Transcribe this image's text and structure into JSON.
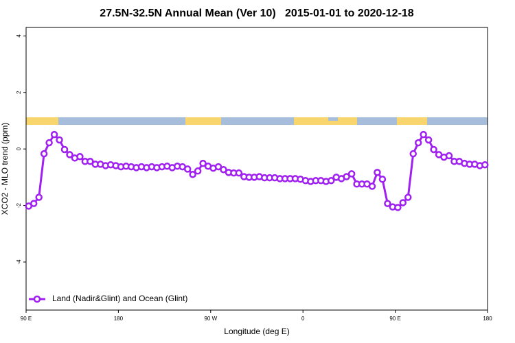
{
  "chart_data": {
    "type": "line",
    "title": "27.5N-32.5N Annual Mean (Ver 10)   2015-01-01 to 2020-12-18",
    "x_label": "Longitude (deg E)",
    "y_label": "XCO2 - MLO trend (ppm)",
    "xlim": [
      90,
      540
    ],
    "xticks": [
      {
        "value": 90,
        "label": "90 E"
      },
      180,
      {
        "value": 270,
        "label": "90 W"
      },
      {
        "value": 360,
        "label": "0"
      },
      {
        "value": 450,
        "label": "90 E"
      },
      {
        "value": 540,
        "label": "180"
      }
    ],
    "ylim": [
      -5.7,
      4.3
    ],
    "yticks": [
      -4,
      -2,
      0,
      2,
      4
    ],
    "legend": "bottom-left",
    "x": [
      92.5,
      97.5,
      102.5,
      107.5,
      112.5,
      117.5,
      122.5,
      127.5,
      132.5,
      137.5,
      142.5,
      147.5,
      152.5,
      157.5,
      162.5,
      167.5,
      172.5,
      177.5,
      182.5,
      187.5,
      192.5,
      197.5,
      202.5,
      207.5,
      212.5,
      217.5,
      222.5,
      227.5,
      232.5,
      237.5,
      242.5,
      247.5,
      252.5,
      257.5,
      262.5,
      267.5,
      272.5,
      277.5,
      282.5,
      287.5,
      292.5,
      297.5,
      302.5,
      307.5,
      312.5,
      317.5,
      322.5,
      327.5,
      332.5,
      337.5,
      342.5,
      347.5,
      352.5,
      357.5,
      362.5,
      367.5,
      372.5,
      377.5,
      382.5,
      387.5,
      392.5,
      397.5,
      402.5,
      407.5,
      412.5,
      417.5,
      422.5,
      427.5,
      432.5,
      437.5,
      442.5,
      447.5,
      452.5,
      457.5,
      462.5,
      467.5,
      472.5,
      477.5,
      482.5,
      487.5,
      492.5,
      497.5,
      502.5,
      507.5,
      512.5,
      517.5,
      522.5,
      527.5,
      532.5,
      537.5
    ],
    "series": [
      {
        "name": "Land (Nadir&Glint) and Ocean (Glint)",
        "color": "#a020f0",
        "values": [
          -2.02,
          -1.93,
          -1.71,
          -0.17,
          0.22,
          0.51,
          0.32,
          -0.02,
          -0.2,
          -0.32,
          -0.27,
          -0.44,
          -0.44,
          -0.54,
          -0.54,
          -0.59,
          -0.56,
          -0.59,
          -0.63,
          -0.61,
          -0.63,
          -0.66,
          -0.63,
          -0.66,
          -0.63,
          -0.66,
          -0.63,
          -0.61,
          -0.66,
          -0.61,
          -0.63,
          -0.71,
          -0.9,
          -0.78,
          -0.51,
          -0.61,
          -0.68,
          -0.63,
          -0.73,
          -0.83,
          -0.85,
          -0.85,
          -0.98,
          -1.0,
          -1.0,
          -0.98,
          -1.02,
          -1.02,
          -1.02,
          -1.05,
          -1.05,
          -1.05,
          -1.05,
          -1.07,
          -1.12,
          -1.15,
          -1.12,
          -1.12,
          -1.15,
          -1.12,
          -1.0,
          -1.05,
          -0.98,
          -0.88,
          -1.24,
          -1.24,
          -1.24,
          -1.32,
          -0.83,
          -1.07,
          -1.93,
          -2.05,
          -2.07,
          -1.9,
          -1.71,
          -0.17,
          0.22,
          0.51,
          0.32,
          -0.02,
          -0.2,
          -0.29,
          -0.24,
          -0.44,
          -0.44,
          -0.51,
          -0.54,
          -0.54,
          -0.59,
          -0.56
        ]
      }
    ]
  }
}
